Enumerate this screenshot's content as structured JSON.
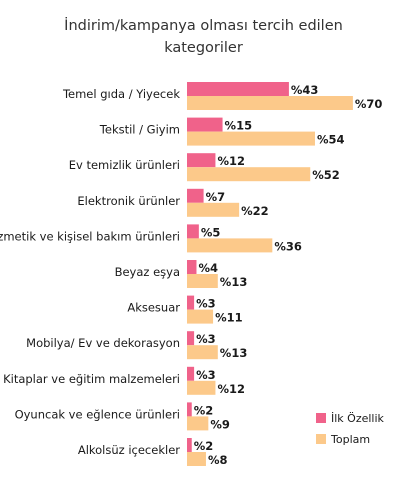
{
  "chart_data": {
    "type": "bar",
    "orientation": "horizontal",
    "title_lines": [
      "İndirim/kampanya olması tercih edilen",
      "kategoriler"
    ],
    "categories": [
      "Temel gıda / Yiyecek",
      "Tekstil / Giyim",
      "Ev temizlik ürünleri",
      "Elektronik ürünler",
      "Kozmetik ve kişisel bakım ürünleri",
      "Beyaz eşya",
      "Aksesuar",
      "Mobilya/ Ev ve dekorasyon",
      "Kitaplar ve eğitim malzemeleri",
      "Oyuncak ve eğlence ürünleri",
      "Alkolsüz içecekler"
    ],
    "series": [
      {
        "name": "İlk Özellik",
        "color": "#f0628a",
        "values": [
          43,
          15,
          12,
          7,
          5,
          4,
          3,
          3,
          3,
          2,
          2
        ],
        "labels": [
          "%43",
          "%15",
          "%12",
          "%7",
          "%5",
          "%4",
          "%3",
          "%3",
          "%3",
          "%2",
          "%2"
        ]
      },
      {
        "name": "Toplam",
        "color": "#fcc98a",
        "values": [
          70,
          54,
          52,
          22,
          36,
          13,
          11,
          13,
          12,
          9,
          8
        ],
        "labels": [
          "%70",
          "%54",
          "%52",
          "%22",
          "%36",
          "%13",
          "%11",
          "%13",
          "%12",
          "%9",
          "%8"
        ]
      }
    ],
    "xlim": [
      0,
      100
    ],
    "grid": false,
    "legend_position": "bottom-right"
  }
}
